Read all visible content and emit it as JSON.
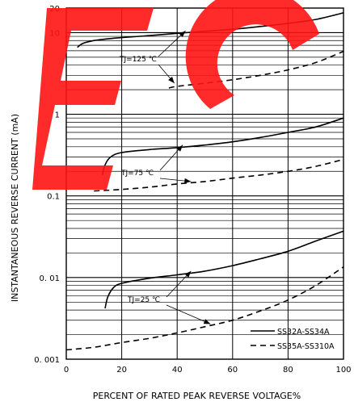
{
  "chart_data": {
    "type": "line",
    "title": "",
    "xlabel": "PERCENT OF RATED PEAK REVERSE VOLTAGE%",
    "ylabel": "INSTANTANEOUS REVERSE CURRENT  (mA)",
    "xlim": [
      0,
      100
    ],
    "ylim": [
      0.001,
      20
    ],
    "yscale": "log",
    "grid": true,
    "legend_position": "bottom-right",
    "x_ticks": [
      0,
      20,
      40,
      60,
      80,
      100
    ],
    "x_tick_labels": [
      "0",
      "20",
      "40",
      "60",
      "80",
      "100"
    ],
    "y_ticks": [
      0.001,
      0.01,
      0.1,
      1,
      10,
      20
    ],
    "y_tick_labels": [
      "0. 001",
      "0. 01",
      "0.1",
      "1",
      "10",
      "20"
    ],
    "legend": [
      {
        "label": "SS32A-SS34A",
        "style": "solid"
      },
      {
        "label": "SS35A-SS310A",
        "style": "dashed"
      }
    ],
    "annotations": [
      {
        "text": "TJ=125 ℃",
        "targets": [
          [
            43,
            10.5
          ],
          [
            39,
            2.4
          ]
        ]
      },
      {
        "text": "TJ=75 ℃",
        "targets": [
          [
            42,
            0.42
          ],
          [
            45,
            0.15
          ]
        ]
      },
      {
        "text": "TJ=25 ℃",
        "targets": [
          [
            45,
            0.012
          ],
          [
            52,
            0.0027
          ]
        ]
      }
    ],
    "series": [
      {
        "group": "SS32A-SS34A",
        "tj": "125",
        "style": "solid",
        "x": [
          4,
          6,
          10,
          15,
          20,
          30,
          40,
          50,
          60,
          70,
          80,
          90,
          100
        ],
        "y": [
          6.6,
          7.4,
          8.0,
          8.4,
          8.7,
          9.2,
          9.8,
          10.4,
          11.0,
          11.9,
          13.0,
          14.5,
          17.5
        ]
      },
      {
        "group": "SS35A-SS310A",
        "tj": "125",
        "style": "dashed",
        "x": [
          37,
          40,
          50,
          60,
          70,
          80,
          90,
          100
        ],
        "y": [
          2.1,
          2.2,
          2.4,
          2.65,
          3.0,
          3.5,
          4.3,
          5.9
        ]
      },
      {
        "group": "SS32A-SS34A",
        "tj": "75",
        "style": "solid",
        "x": [
          13,
          14,
          16,
          20,
          30,
          40,
          50,
          60,
          70,
          80,
          90,
          100
        ],
        "y": [
          0.18,
          0.24,
          0.3,
          0.34,
          0.37,
          0.39,
          0.42,
          0.46,
          0.52,
          0.6,
          0.7,
          0.9
        ]
      },
      {
        "group": "SS35A-SS310A",
        "tj": "75",
        "style": "dashed",
        "x": [
          10,
          20,
          30,
          40,
          50,
          60,
          70,
          80,
          90,
          100
        ],
        "y": [
          0.115,
          0.12,
          0.128,
          0.14,
          0.15,
          0.165,
          0.18,
          0.2,
          0.23,
          0.28
        ]
      },
      {
        "group": "SS32A-SS34A",
        "tj": "25",
        "style": "solid",
        "x": [
          14,
          15,
          17,
          20,
          30,
          40,
          50,
          60,
          70,
          80,
          90,
          100
        ],
        "y": [
          0.0042,
          0.0058,
          0.0075,
          0.0085,
          0.0098,
          0.0108,
          0.012,
          0.014,
          0.017,
          0.021,
          0.028,
          0.037
        ]
      },
      {
        "group": "SS35A-SS310A",
        "tj": "25",
        "style": "dashed",
        "x": [
          0,
          10,
          20,
          30,
          40,
          50,
          60,
          70,
          80,
          90,
          100
        ],
        "y": [
          0.0013,
          0.0014,
          0.0016,
          0.0018,
          0.0021,
          0.0025,
          0.003,
          0.0039,
          0.0053,
          0.008,
          0.0135
        ]
      }
    ]
  },
  "watermark": {
    "text": "EC",
    "color": "#ff1414"
  }
}
